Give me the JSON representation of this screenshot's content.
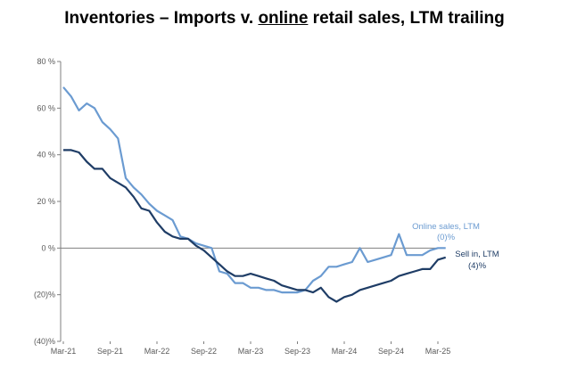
{
  "title": {
    "part1": "Inventories – Imports v. ",
    "part2": "online",
    "part3": " retail sales, LTM trailing"
  },
  "chart_data": {
    "type": "line",
    "title": "Inventories – Imports v. online retail sales, LTM trailing",
    "xlabel": "",
    "ylabel": "",
    "ylim": [
      -40,
      80
    ],
    "y_ticks": [
      80,
      60,
      40,
      20,
      0,
      -20,
      -40
    ],
    "y_tick_labels": [
      "80 %",
      "60 %",
      "40 %",
      "20 %",
      "0 %",
      "(20)%",
      "(40)%"
    ],
    "x_ticks": [
      "Mar-21",
      "Sep-21",
      "Mar-22",
      "Sep-22",
      "Mar-23",
      "Sep-23",
      "Mar-24",
      "Sep-24",
      "Mar-25"
    ],
    "x": [
      "Mar-21",
      "Apr-21",
      "May-21",
      "Jun-21",
      "Jul-21",
      "Aug-21",
      "Sep-21",
      "Oct-21",
      "Nov-21",
      "Dec-21",
      "Jan-22",
      "Feb-22",
      "Mar-22",
      "Apr-22",
      "May-22",
      "Jun-22",
      "Jul-22",
      "Aug-22",
      "Sep-22",
      "Oct-22",
      "Nov-22",
      "Dec-22",
      "Jan-23",
      "Feb-23",
      "Mar-23",
      "Apr-23",
      "May-23",
      "Jun-23",
      "Jul-23",
      "Aug-23",
      "Sep-23",
      "Oct-23",
      "Nov-23",
      "Dec-23",
      "Jan-24",
      "Feb-24",
      "Mar-24",
      "Apr-24",
      "May-24",
      "Jun-24",
      "Jul-24",
      "Aug-24",
      "Sep-24",
      "Oct-24",
      "Nov-24",
      "Dec-24",
      "Jan-25",
      "Feb-25",
      "Mar-25",
      "Apr-25"
    ],
    "series": [
      {
        "name": "Online sales, LTM",
        "end_label": "(0)%",
        "color": "#6b9bd1",
        "values": [
          69,
          65,
          59,
          62,
          60,
          54,
          51,
          47,
          30,
          26,
          23,
          19,
          16,
          14,
          12,
          5,
          4,
          2,
          1,
          0,
          -10,
          -11,
          -15,
          -15,
          -17,
          -17,
          -18,
          -18,
          -19,
          -19,
          -19,
          -18,
          -14,
          -12,
          -8,
          -8,
          -7,
          -6,
          0,
          -6,
          -5,
          -4,
          -3,
          6,
          -3,
          -3,
          -3,
          -1,
          0,
          0
        ]
      },
      {
        "name": "Sell in, LTM",
        "end_label": "(4)%",
        "color": "#1f3d66",
        "values": [
          42,
          42,
          41,
          37,
          34,
          34,
          30,
          28,
          26,
          22,
          17,
          16,
          11,
          7,
          5,
          4,
          4,
          1,
          -1,
          -4,
          -7,
          -10,
          -12,
          -12,
          -11,
          -12,
          -13,
          -14,
          -16,
          -17,
          -18,
          -18,
          -19,
          -17,
          -21,
          -23,
          -21,
          -20,
          -18,
          -17,
          -16,
          -15,
          -14,
          -12,
          -11,
          -10,
          -9,
          -9,
          -5,
          -4
        ]
      }
    ]
  }
}
